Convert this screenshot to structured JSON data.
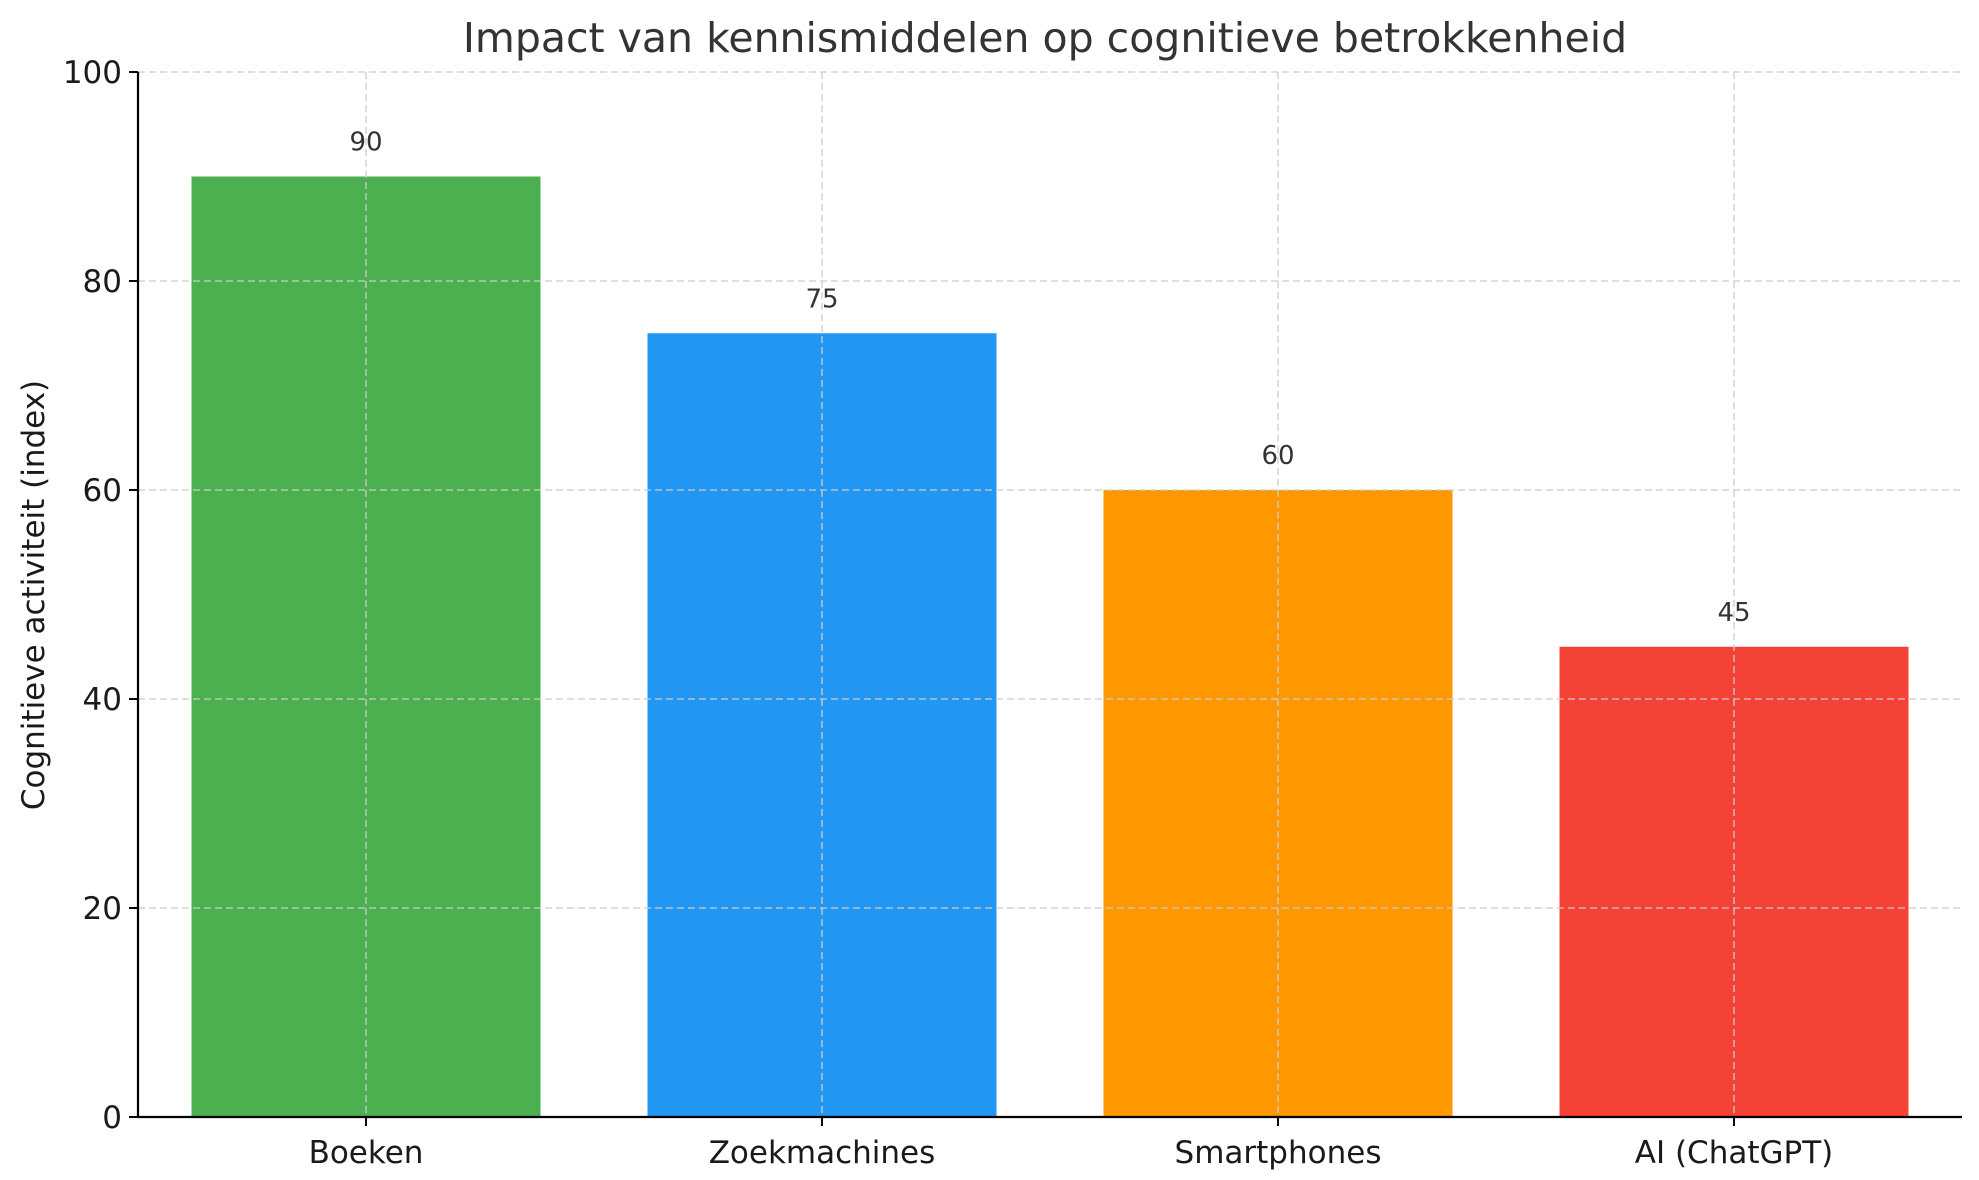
{
  "chart_data": {
    "type": "bar",
    "title": "Impact van kennismiddelen op cognitieve betrokkenheid",
    "xlabel": "",
    "ylabel": "Cognitieve activiteit (index)",
    "categories": [
      "Boeken",
      "Zoekmachines",
      "Smartphones",
      "AI (ChatGPT)"
    ],
    "values": [
      90,
      75,
      60,
      45
    ],
    "value_labels": [
      "90",
      "75",
      "60",
      "45"
    ],
    "colors": [
      "#4caf50",
      "#2196f3",
      "#ff9800",
      "#f44336"
    ],
    "ylim": [
      0,
      100
    ],
    "yticks": [
      0,
      20,
      40,
      60,
      80,
      100
    ],
    "ytick_labels": [
      "0",
      "20",
      "40",
      "60",
      "80",
      "100"
    ],
    "grid": true,
    "grid_style": "dashed",
    "legend": false
  }
}
